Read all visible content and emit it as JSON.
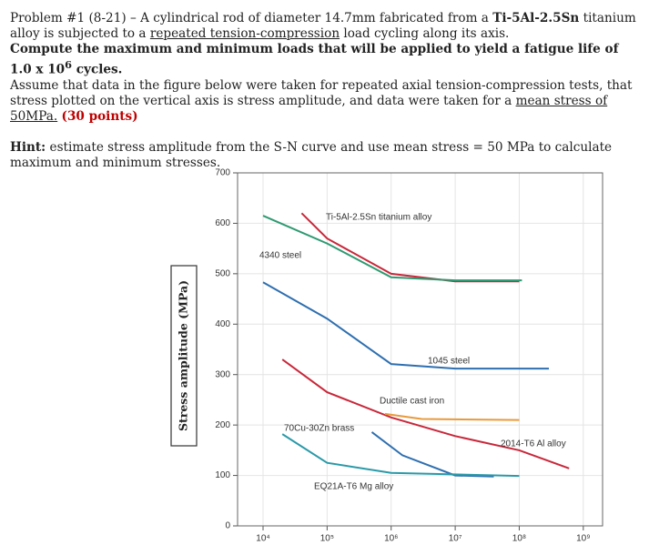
{
  "problem": {
    "p1": [
      "Problem #1 (8-21) – A cylindrical rod of diameter 14.7mm fabricated from a ",
      "Ti-5Al-2.5Sn",
      " titanium alloy is subjected to a ",
      "repeated tension-compression",
      " load cycling along its axis."
    ],
    "p2": [
      "Compute the maximum and minimum loads that will be applied to yield a fatigue life of 1.0 x 10",
      "6",
      " cycles."
    ],
    "p3": [
      "Assume that data in the figure below were taken for repeated axial tension-compression tests, that stress plotted on the vertical axis is stress amplitude, and data were taken for a ",
      "mean stress of 50MPa.",
      "(30 points)"
    ],
    "hint": [
      "Hint:",
      " estimate stress amplitude from the S-N curve and use mean stress = 50 MPa to calculate maximum and minimum stresses."
    ]
  },
  "chart_data": {
    "type": "line",
    "log_x": true,
    "grid": true,
    "y_label": "Stress amplitude (MPa)",
    "xlim": [
      4000,
      2000000000
    ],
    "ylim": [
      0,
      700
    ],
    "xticks": [
      {
        "value": 10000,
        "label": "10⁴"
      },
      {
        "value": 100000,
        "label": "10⁵"
      },
      {
        "value": 1000000,
        "label": "10⁶"
      },
      {
        "value": 10000000,
        "label": "10⁷"
      },
      {
        "value": 100000000,
        "label": "10⁸"
      },
      {
        "value": 1000000000,
        "label": "10⁹"
      }
    ],
    "yticks": [
      0,
      100,
      200,
      300,
      400,
      500,
      600,
      700
    ],
    "series": [
      {
        "name": "Ti-5Al-2.5Sn titanium alloy",
        "color": "#c8283a",
        "x": [
          40000,
          100000,
          1000000,
          10000000,
          100000000
        ],
        "values": [
          620,
          570,
          500,
          485,
          485
        ]
      },
      {
        "name": "4340 steel",
        "color": "#2e9a72",
        "x": [
          10000,
          100000,
          1000000,
          10000000,
          110000000
        ],
        "values": [
          615,
          560,
          493,
          487,
          487
        ]
      },
      {
        "name": "1045 steel",
        "color": "#2e6fb0",
        "x": [
          10000,
          100000,
          1000000,
          10000000,
          290000000
        ],
        "values": [
          483,
          411,
          321,
          312,
          312
        ]
      },
      {
        "name": "2014-T6 Al alloy",
        "color": "#c8283a",
        "x": [
          20000,
          100000,
          1000000,
          10000000,
          100000000,
          600000000
        ],
        "values": [
          330,
          265,
          215,
          178,
          150,
          114
        ]
      },
      {
        "name": "Ductile cast iron",
        "color": "#e89a3c",
        "x": [
          800000,
          3000000,
          100000000
        ],
        "values": [
          222,
          212,
          210
        ]
      },
      {
        "name": "70Cu-30Zn brass",
        "color": "#2e6fb0",
        "x": [
          500000,
          1500000,
          10000000,
          40000000
        ],
        "values": [
          186,
          140,
          100,
          98
        ]
      },
      {
        "name": "EQ21A-T6 Mg alloy",
        "color": "#2a9aa8",
        "x": [
          20000,
          100000,
          1000000,
          100000000
        ],
        "values": [
          182,
          125,
          105,
          99
        ]
      }
    ]
  }
}
